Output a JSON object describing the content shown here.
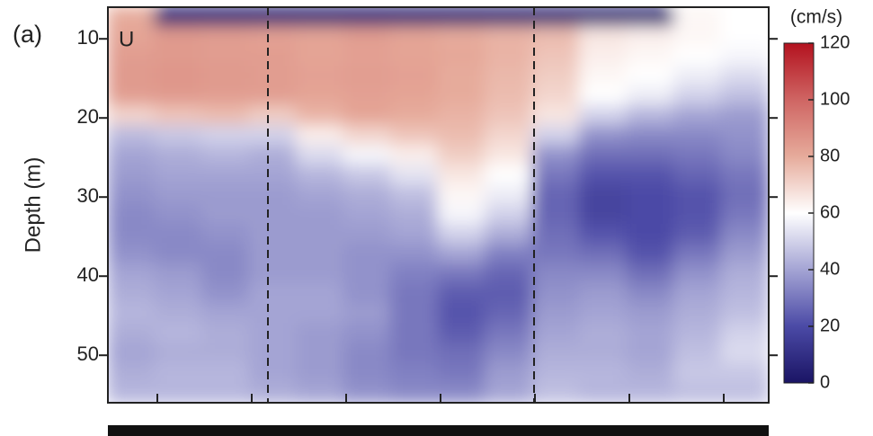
{
  "chart_data": {
    "type": "heatmap",
    "title": "(a)",
    "annotation": "U",
    "y_label": "Depth (m)",
    "y_inverted": true,
    "ylim": [
      6,
      56
    ],
    "yticks": [
      10,
      20,
      30,
      40,
      50
    ],
    "ybins": [
      6,
      8.5,
      11,
      13.5,
      16,
      18.5,
      21,
      23.5,
      26,
      28.5,
      31,
      33.5,
      36,
      38.5,
      41,
      43.5,
      46,
      48.5,
      51,
      53.5,
      56
    ],
    "categories": [
      null,
      null,
      null,
      null,
      null,
      null,
      null,
      null,
      null,
      null,
      null,
      null,
      null,
      null
    ],
    "values": [
      [
        80,
        5,
        5,
        5,
        5,
        5,
        5,
        5,
        5,
        5,
        5,
        5,
        62,
        60
      ],
      [
        82,
        85,
        84,
        83,
        82,
        84,
        82,
        80,
        78,
        76,
        66,
        64,
        62,
        60
      ],
      [
        84,
        85,
        84,
        84,
        82,
        83,
        82,
        81,
        78,
        74,
        64,
        62,
        60,
        58
      ],
      [
        85,
        86,
        85,
        84,
        83,
        84,
        83,
        80,
        77,
        72,
        62,
        60,
        56,
        52
      ],
      [
        84,
        85,
        84,
        84,
        82,
        83,
        82,
        80,
        76,
        70,
        60,
        56,
        50,
        46
      ],
      [
        70,
        74,
        76,
        72,
        78,
        82,
        80,
        78,
        74,
        66,
        50,
        44,
        40,
        38
      ],
      [
        45,
        48,
        50,
        50,
        64,
        70,
        74,
        76,
        70,
        50,
        36,
        34,
        34,
        36
      ],
      [
        40,
        42,
        44,
        42,
        52,
        58,
        64,
        72,
        66,
        36,
        28,
        28,
        30,
        34
      ],
      [
        38,
        40,
        40,
        40,
        44,
        48,
        54,
        66,
        60,
        30,
        22,
        22,
        26,
        30
      ],
      [
        36,
        38,
        38,
        38,
        40,
        42,
        46,
        62,
        56,
        26,
        18,
        20,
        22,
        28
      ],
      [
        34,
        36,
        38,
        38,
        38,
        40,
        42,
        58,
        50,
        26,
        18,
        20,
        22,
        30
      ],
      [
        34,
        34,
        36,
        38,
        38,
        38,
        40,
        50,
        42,
        28,
        22,
        20,
        24,
        34
      ],
      [
        36,
        34,
        34,
        38,
        38,
        36,
        36,
        40,
        32,
        30,
        28,
        22,
        30,
        38
      ],
      [
        40,
        38,
        34,
        38,
        38,
        36,
        32,
        30,
        26,
        34,
        34,
        28,
        36,
        42
      ],
      [
        42,
        40,
        36,
        40,
        40,
        36,
        30,
        24,
        24,
        36,
        38,
        34,
        40,
        44
      ],
      [
        44,
        42,
        40,
        40,
        40,
        38,
        30,
        22,
        26,
        38,
        40,
        38,
        42,
        46
      ],
      [
        42,
        44,
        42,
        40,
        38,
        36,
        30,
        24,
        30,
        40,
        42,
        40,
        44,
        50
      ],
      [
        40,
        42,
        42,
        40,
        38,
        34,
        30,
        28,
        34,
        42,
        42,
        40,
        46,
        52
      ],
      [
        42,
        44,
        44,
        40,
        38,
        34,
        32,
        30,
        38,
        44,
        44,
        42,
        48,
        48
      ],
      [
        44,
        44,
        44,
        42,
        40,
        36,
        34,
        34,
        40,
        46,
        44,
        44,
        46,
        46
      ]
    ],
    "colorbar": {
      "label": "(cm/s)",
      "lim": [
        0,
        120
      ],
      "ticks": [
        0,
        20,
        40,
        60,
        80,
        100,
        120
      ],
      "colors": [
        "#1a1464",
        "#4b4aa6",
        "#a4a4d4",
        "#ffffff",
        "#e6ab9b",
        "#cf6563",
        "#b3121f"
      ]
    }
  }
}
